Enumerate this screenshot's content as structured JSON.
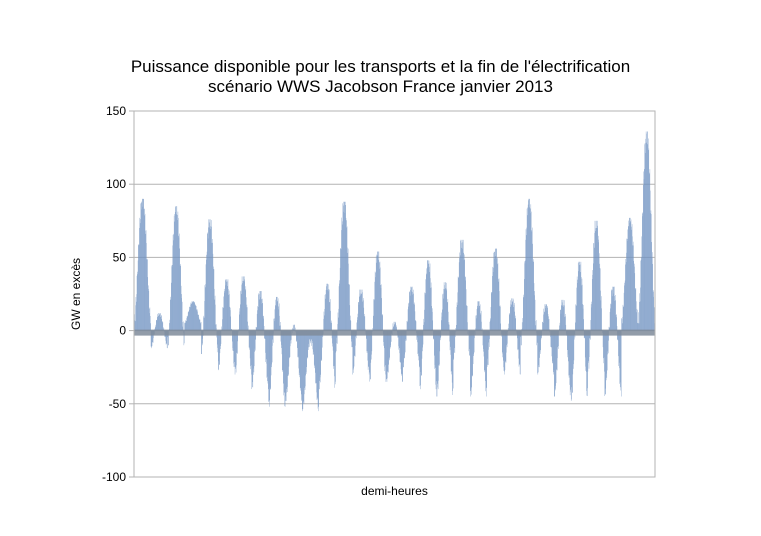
{
  "chart_data": {
    "type": "bar",
    "title": "Puissance disponible pour les transports et la fin de l'électrification",
    "subtitle": "scénario WWS Jacobson France janvier 2013",
    "xlabel": "demi-heures",
    "ylabel": "GW en excès",
    "ylim": [
      -100,
      150
    ],
    "yticks": [
      -100,
      -50,
      0,
      50,
      100,
      150
    ],
    "ytick_labels": [
      "-100",
      "-50",
      "0",
      "50",
      "100",
      "150"
    ],
    "grid": "horizontal",
    "legend": "none",
    "bar_color": "#7294c2",
    "baseline_color": "#7f8b9a",
    "samples_per_day": 48,
    "days": 31,
    "daily_envelope": [
      {
        "day": 1,
        "max": 90,
        "min": 5
      },
      {
        "day": 2,
        "max": 12,
        "min": -12
      },
      {
        "day": 3,
        "max": 85,
        "min": -10
      },
      {
        "day": 4,
        "max": 20,
        "min": 5
      },
      {
        "day": 5,
        "max": 76,
        "min": -16
      },
      {
        "day": 6,
        "max": 35,
        "min": -27
      },
      {
        "day": 7,
        "max": 37,
        "min": -30
      },
      {
        "day": 8,
        "max": 27,
        "min": -40
      },
      {
        "day": 9,
        "max": 23,
        "min": -52
      },
      {
        "day": 10,
        "max": 4,
        "min": -48
      },
      {
        "day": 11,
        "max": -6,
        "min": -55
      },
      {
        "day": 12,
        "max": 32,
        "min": -40
      },
      {
        "day": 13,
        "max": 88,
        "min": -15
      },
      {
        "day": 14,
        "max": 28,
        "min": -30
      },
      {
        "day": 15,
        "max": 54,
        "min": -35
      },
      {
        "day": 16,
        "max": 6,
        "min": -35
      },
      {
        "day": 17,
        "max": 30,
        "min": -25
      },
      {
        "day": 18,
        "max": 48,
        "min": -40
      },
      {
        "day": 19,
        "max": 33,
        "min": -45
      },
      {
        "day": 20,
        "max": 62,
        "min": -20
      },
      {
        "day": 21,
        "max": 20,
        "min": -45
      },
      {
        "day": 22,
        "max": 56,
        "min": -25
      },
      {
        "day": 23,
        "max": 22,
        "min": -30
      },
      {
        "day": 24,
        "max": 90,
        "min": -10
      },
      {
        "day": 25,
        "max": 18,
        "min": -30
      },
      {
        "day": 26,
        "max": 21,
        "min": -45
      },
      {
        "day": 27,
        "max": 47,
        "min": -48
      },
      {
        "day": 28,
        "max": 75,
        "min": -28
      },
      {
        "day": 29,
        "max": 30,
        "min": -45
      },
      {
        "day": 30,
        "max": 77,
        "min": 5
      },
      {
        "day": 31,
        "max": 136,
        "min": 5
      }
    ]
  }
}
